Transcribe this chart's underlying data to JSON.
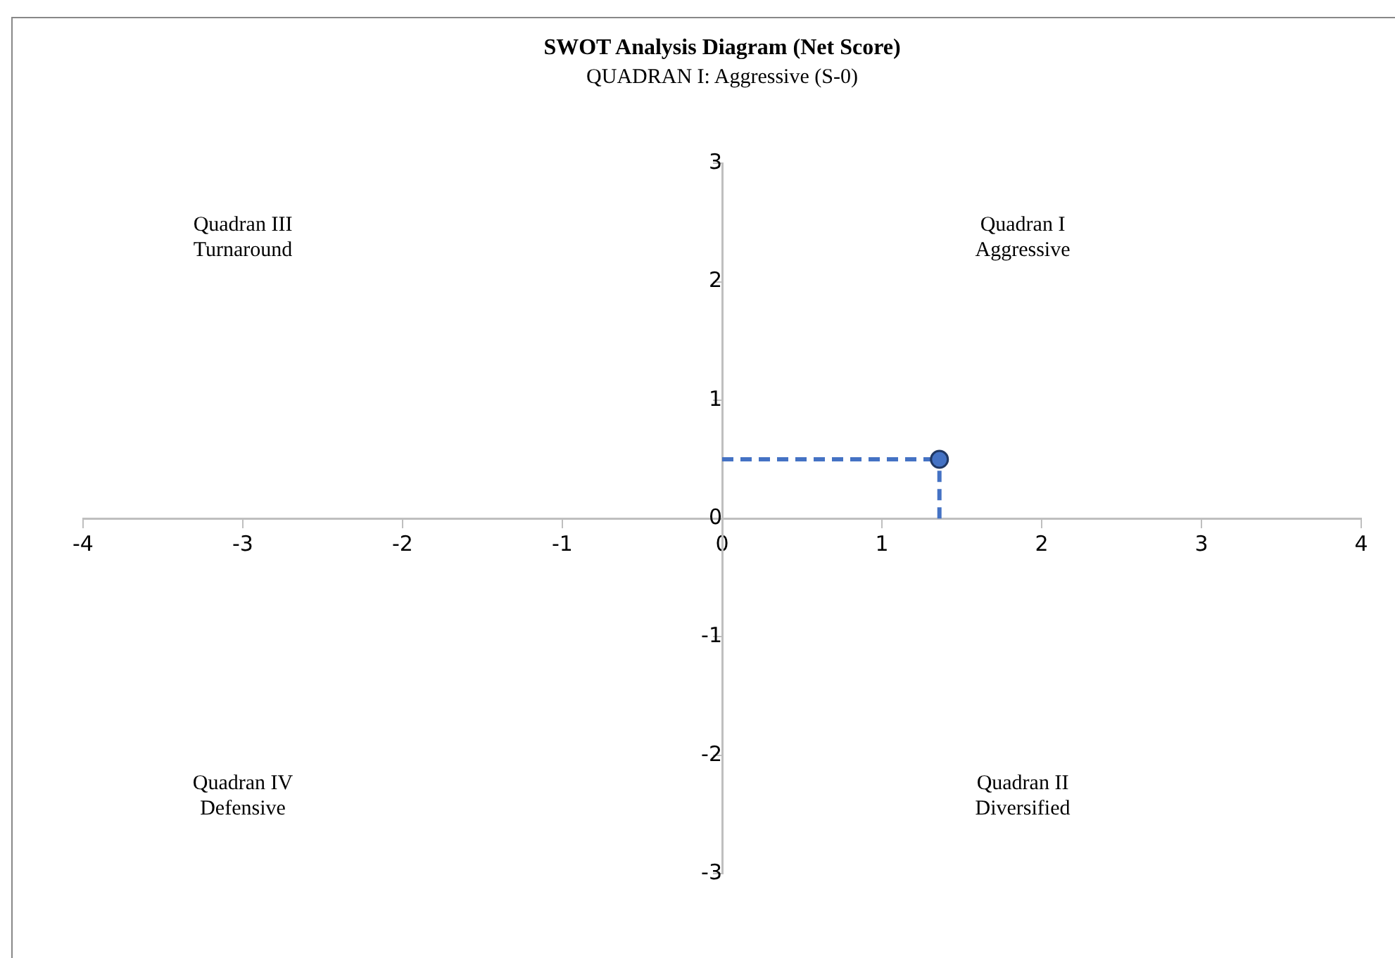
{
  "chart_data": {
    "type": "scatter",
    "title": "SWOT Analysis Diagram (Net Score)",
    "subtitle": "QUADRAN I: Aggressive (S-0)",
    "x": [
      1.36
    ],
    "series": [
      {
        "color": "#4472c4",
        "values": [
          0.5
        ],
        "errors": [
          [
            0,
            0.5
          ]
        ],
        "xerrors": [
          [
            0,
            1.36
          ]
        ]
      }
    ],
    "xlim": [
      -4,
      4
    ],
    "xticks": [
      -4,
      -3,
      -2,
      -1,
      0,
      1,
      2,
      3,
      4
    ],
    "ylim": [
      -3,
      3
    ],
    "yticks": [
      -3,
      -2,
      -1,
      0,
      1,
      2,
      3
    ],
    "grid": false,
    "legend": false,
    "marker": "circle",
    "line_style": "dashed",
    "annotations": [
      "Quadran I\nAggressive",
      "Quadran III\nTurnaround",
      "Quadran IV\nDefensive",
      "Quadran II\nDiversified"
    ]
  }
}
